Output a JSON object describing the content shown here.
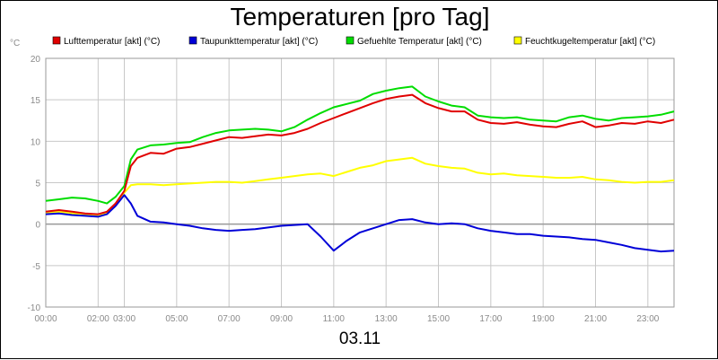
{
  "chart_data": {
    "type": "line",
    "title": "Temperaturen [pro Tag]",
    "date_label": "03.11",
    "yunit": "°C",
    "ylim": [
      -10,
      20
    ],
    "yticks": [
      -10,
      -5,
      0,
      5,
      10,
      15,
      20
    ],
    "xlim": [
      "00:00",
      "24:00"
    ],
    "xticks": [
      "00:00",
      "02:00",
      "03:00",
      "05:00",
      "07:00",
      "09:00",
      "11:00",
      "13:00",
      "15:00",
      "17:00",
      "19:00",
      "21:00",
      "23:00"
    ],
    "grid": true,
    "legend_position": "top",
    "series": [
      {
        "name": "Lufttemperatur [akt] (°C)",
        "color": "#e00000",
        "x": [
          "00:00",
          "00:30",
          "01:00",
          "01:30",
          "02:00",
          "02:20",
          "02:40",
          "03:00",
          "03:15",
          "03:30",
          "04:00",
          "04:30",
          "05:00",
          "05:30",
          "06:00",
          "06:30",
          "07:00",
          "07:30",
          "08:00",
          "08:30",
          "09:00",
          "09:30",
          "10:00",
          "10:30",
          "11:00",
          "11:30",
          "12:00",
          "12:30",
          "13:00",
          "13:30",
          "14:00",
          "14:30",
          "15:00",
          "15:30",
          "16:00",
          "16:30",
          "17:00",
          "17:30",
          "18:00",
          "18:30",
          "19:00",
          "19:30",
          "20:00",
          "20:30",
          "21:00",
          "21:30",
          "22:00",
          "22:30",
          "23:00",
          "23:30",
          "24:00"
        ],
        "values": [
          1.5,
          1.7,
          1.5,
          1.3,
          1.2,
          1.5,
          2.5,
          4.0,
          7.0,
          8.0,
          8.6,
          8.5,
          9.1,
          9.3,
          9.7,
          10.1,
          10.5,
          10.4,
          10.6,
          10.8,
          10.7,
          11.0,
          11.5,
          12.2,
          12.8,
          13.4,
          14.0,
          14.6,
          15.1,
          15.4,
          15.6,
          14.6,
          14.0,
          13.6,
          13.6,
          12.6,
          12.2,
          12.1,
          12.3,
          12.0,
          11.8,
          11.7,
          12.1,
          12.4,
          11.7,
          11.9,
          12.2,
          12.1,
          12.4,
          12.2,
          12.6
        ]
      },
      {
        "name": "Taupunkttemperatur [akt] (°C)",
        "color": "#0000d8",
        "x": [
          "00:00",
          "00:30",
          "01:00",
          "01:30",
          "02:00",
          "02:20",
          "02:40",
          "03:00",
          "03:15",
          "03:30",
          "04:00",
          "04:30",
          "05:00",
          "05:30",
          "06:00",
          "06:30",
          "07:00",
          "07:30",
          "08:00",
          "08:30",
          "09:00",
          "09:30",
          "10:00",
          "10:30",
          "11:00",
          "11:30",
          "12:00",
          "12:30",
          "13:00",
          "13:30",
          "14:00",
          "14:30",
          "15:00",
          "15:30",
          "16:00",
          "16:30",
          "17:00",
          "17:30",
          "18:00",
          "18:30",
          "19:00",
          "19:30",
          "20:00",
          "20:30",
          "21:00",
          "21:30",
          "22:00",
          "22:30",
          "23:00",
          "23:30",
          "24:00"
        ],
        "values": [
          1.2,
          1.3,
          1.1,
          1.0,
          0.9,
          1.2,
          2.2,
          3.5,
          2.5,
          1.0,
          0.3,
          0.2,
          0.0,
          -0.2,
          -0.5,
          -0.7,
          -0.8,
          -0.7,
          -0.6,
          -0.4,
          -0.2,
          -0.1,
          0.0,
          -1.5,
          -3.2,
          -2.0,
          -1.0,
          -0.5,
          0.0,
          0.5,
          0.6,
          0.2,
          0.0,
          0.1,
          0.0,
          -0.5,
          -0.8,
          -1.0,
          -1.2,
          -1.2,
          -1.4,
          -1.5,
          -1.6,
          -1.8,
          -1.9,
          -2.2,
          -2.5,
          -2.9,
          -3.1,
          -3.3,
          -3.2
        ]
      },
      {
        "name": "Gefuehlte Temperatur [akt] (°C)",
        "color": "#00dd00",
        "x": [
          "00:00",
          "00:30",
          "01:00",
          "01:30",
          "02:00",
          "02:20",
          "02:40",
          "03:00",
          "03:15",
          "03:30",
          "04:00",
          "04:30",
          "05:00",
          "05:30",
          "06:00",
          "06:30",
          "07:00",
          "07:30",
          "08:00",
          "08:30",
          "09:00",
          "09:30",
          "10:00",
          "10:30",
          "11:00",
          "11:30",
          "12:00",
          "12:30",
          "13:00",
          "13:30",
          "14:00",
          "14:30",
          "15:00",
          "15:30",
          "16:00",
          "16:30",
          "17:00",
          "17:30",
          "18:00",
          "18:30",
          "19:00",
          "19:30",
          "20:00",
          "20:30",
          "21:00",
          "21:30",
          "22:00",
          "22:30",
          "23:00",
          "23:30",
          "24:00"
        ],
        "values": [
          2.8,
          3.0,
          3.2,
          3.1,
          2.8,
          2.5,
          3.3,
          4.6,
          7.8,
          9.0,
          9.5,
          9.6,
          9.8,
          9.9,
          10.5,
          11.0,
          11.3,
          11.4,
          11.5,
          11.4,
          11.2,
          11.7,
          12.6,
          13.4,
          14.1,
          14.5,
          14.9,
          15.7,
          16.1,
          16.4,
          16.6,
          15.4,
          14.8,
          14.3,
          14.1,
          13.1,
          12.9,
          12.8,
          12.9,
          12.6,
          12.5,
          12.4,
          12.9,
          13.1,
          12.7,
          12.5,
          12.8,
          12.9,
          13.0,
          13.2,
          13.6
        ]
      },
      {
        "name": "Feuchtkugeltemperatur [akt] (°C)",
        "color": "#ffff00",
        "x": [
          "00:00",
          "00:30",
          "01:00",
          "01:30",
          "02:00",
          "02:20",
          "02:40",
          "03:00",
          "03:15",
          "03:30",
          "04:00",
          "04:30",
          "05:00",
          "05:30",
          "06:00",
          "06:30",
          "07:00",
          "07:30",
          "08:00",
          "08:30",
          "09:00",
          "09:30",
          "10:00",
          "10:30",
          "11:00",
          "11:30",
          "12:00",
          "12:30",
          "13:00",
          "13:30",
          "14:00",
          "14:30",
          "15:00",
          "15:30",
          "16:00",
          "16:30",
          "17:00",
          "17:30",
          "18:00",
          "18:30",
          "19:00",
          "19:30",
          "20:00",
          "20:30",
          "21:00",
          "21:30",
          "22:00",
          "22:30",
          "23:00",
          "23:30",
          "24:00"
        ],
        "values": [
          1.3,
          1.5,
          1.3,
          1.2,
          1.0,
          1.3,
          2.4,
          3.8,
          4.7,
          4.8,
          4.8,
          4.7,
          4.8,
          4.9,
          5.0,
          5.1,
          5.1,
          5.0,
          5.2,
          5.4,
          5.6,
          5.8,
          6.0,
          6.1,
          5.8,
          6.3,
          6.8,
          7.1,
          7.6,
          7.8,
          8.0,
          7.3,
          7.0,
          6.8,
          6.7,
          6.2,
          6.0,
          6.1,
          5.9,
          5.8,
          5.7,
          5.6,
          5.6,
          5.7,
          5.4,
          5.3,
          5.1,
          5.0,
          5.1,
          5.1,
          5.3
        ]
      }
    ]
  }
}
